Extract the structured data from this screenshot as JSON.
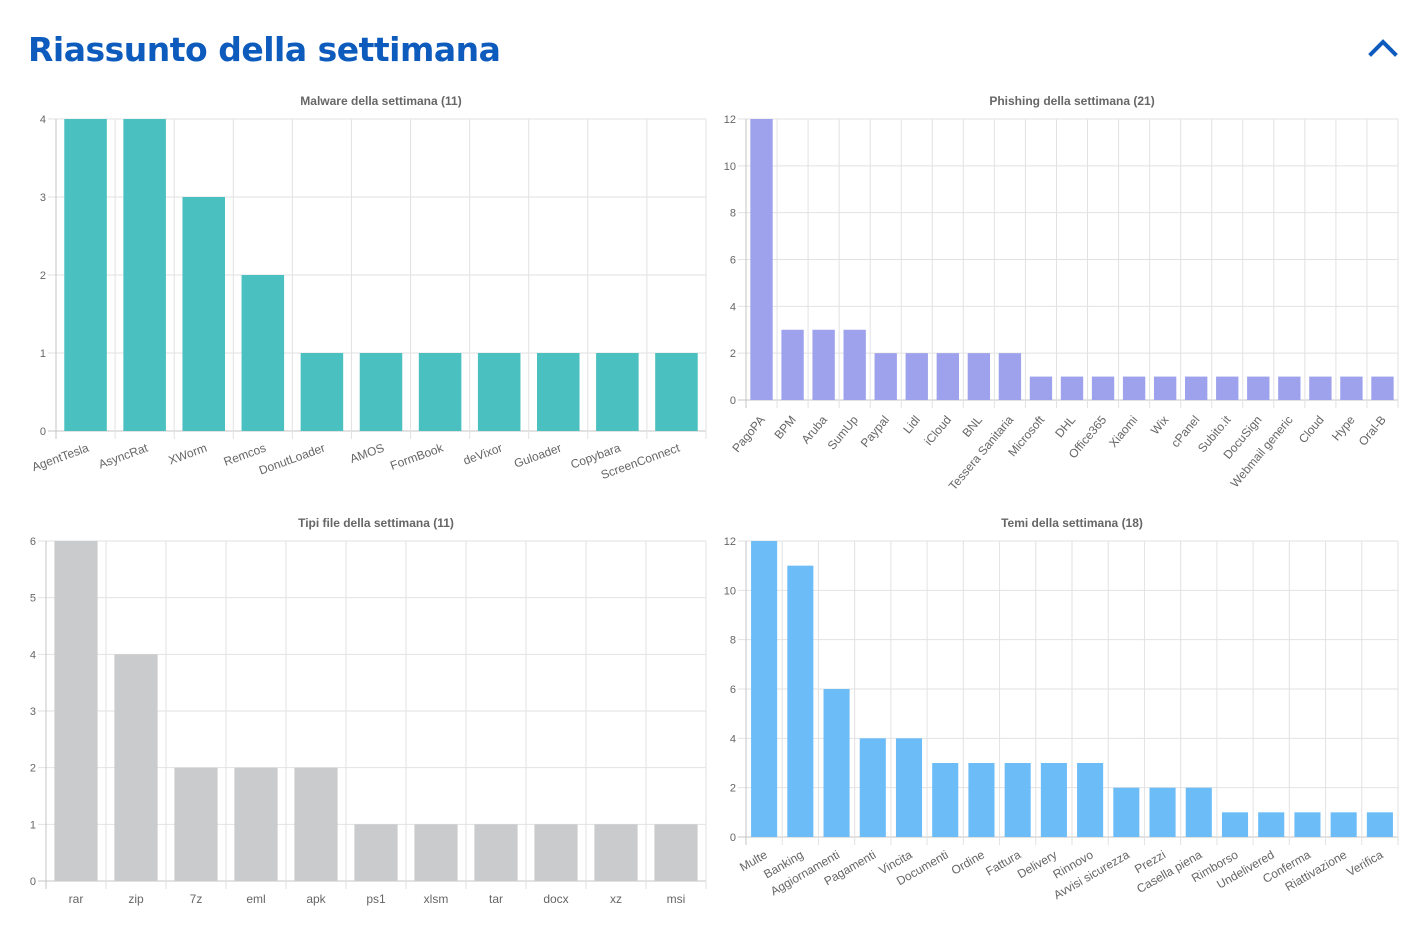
{
  "page": {
    "title": "Riassunto della settimana",
    "collapse_icon": "chevron-up-icon",
    "accent_color": "#0c5bbd"
  },
  "chart_data": [
    {
      "type": "bar",
      "title": "Malware della settimana (11)",
      "categories": [
        "AgentTesla",
        "AsyncRat",
        "XWorm",
        "Remcos",
        "DonutLoader",
        "AMOS",
        "FormBook",
        "deVixor",
        "Guloader",
        "Copybara",
        "ScreenConnect"
      ],
      "values": [
        4,
        4,
        3,
        2,
        1,
        1,
        1,
        1,
        1,
        1,
        1
      ],
      "ylim": [
        0,
        4
      ],
      "yticks": [
        0,
        1,
        2,
        3,
        4
      ],
      "color": "#4bc0c0",
      "xlabel": "",
      "ylabel": "",
      "grid": true,
      "legend": "none"
    },
    {
      "type": "bar",
      "title": "Phishing della settimana (21)",
      "categories": [
        "PagoPA",
        "BPM",
        "Aruba",
        "SumUp",
        "Paypal",
        "Lidl",
        "iCloud",
        "BNL",
        "Tessera Sanitaria",
        "Microsoft",
        "DHL",
        "Office365",
        "Xiaomi",
        "Wix",
        "cPanel",
        "Subito.it",
        "DocuSign",
        "Webmail generic",
        "Cloud",
        "Hype",
        "Oral-B"
      ],
      "values": [
        12,
        3,
        3,
        3,
        2,
        2,
        2,
        2,
        2,
        1,
        1,
        1,
        1,
        1,
        1,
        1,
        1,
        1,
        1,
        1,
        1
      ],
      "ylim": [
        0,
        12
      ],
      "yticks": [
        0,
        2,
        4,
        6,
        8,
        10,
        12
      ],
      "color": "#9ea2ec",
      "xlabel": "",
      "ylabel": "",
      "grid": true,
      "legend": "none"
    },
    {
      "type": "bar",
      "title": "Tipi file della settimana (11)",
      "categories": [
        "rar",
        "zip",
        "7z",
        "eml",
        "apk",
        "ps1",
        "xlsm",
        "tar",
        "docx",
        "xz",
        "msi"
      ],
      "values": [
        6,
        4,
        2,
        2,
        2,
        1,
        1,
        1,
        1,
        1,
        1
      ],
      "ylim": [
        0,
        6
      ],
      "yticks": [
        0,
        1,
        2,
        3,
        4,
        5,
        6
      ],
      "color": "#cacbcd",
      "xlabel": "",
      "ylabel": "",
      "grid": true,
      "legend": "none"
    },
    {
      "type": "bar",
      "title": "Temi della settimana (18)",
      "categories": [
        "Multe",
        "Banking",
        "Aggiornamenti",
        "Pagamenti",
        "Vincita",
        "Documenti",
        "Ordine",
        "Fattura",
        "Delivery",
        "Rinnovo",
        "Avvisi sicurezza",
        "Prezzi",
        "Casella piena",
        "Rimborso",
        "Undelivered",
        "Conferma",
        "Riattivazione",
        "Verifica"
      ],
      "values": [
        12,
        11,
        6,
        4,
        4,
        3,
        3,
        3,
        3,
        3,
        2,
        2,
        2,
        1,
        1,
        1,
        1,
        1
      ],
      "ylim": [
        0,
        12
      ],
      "yticks": [
        0,
        2,
        4,
        6,
        8,
        10,
        12
      ],
      "color": "#6cbcf8",
      "xlabel": "",
      "ylabel": "",
      "grid": true,
      "legend": "none"
    }
  ]
}
